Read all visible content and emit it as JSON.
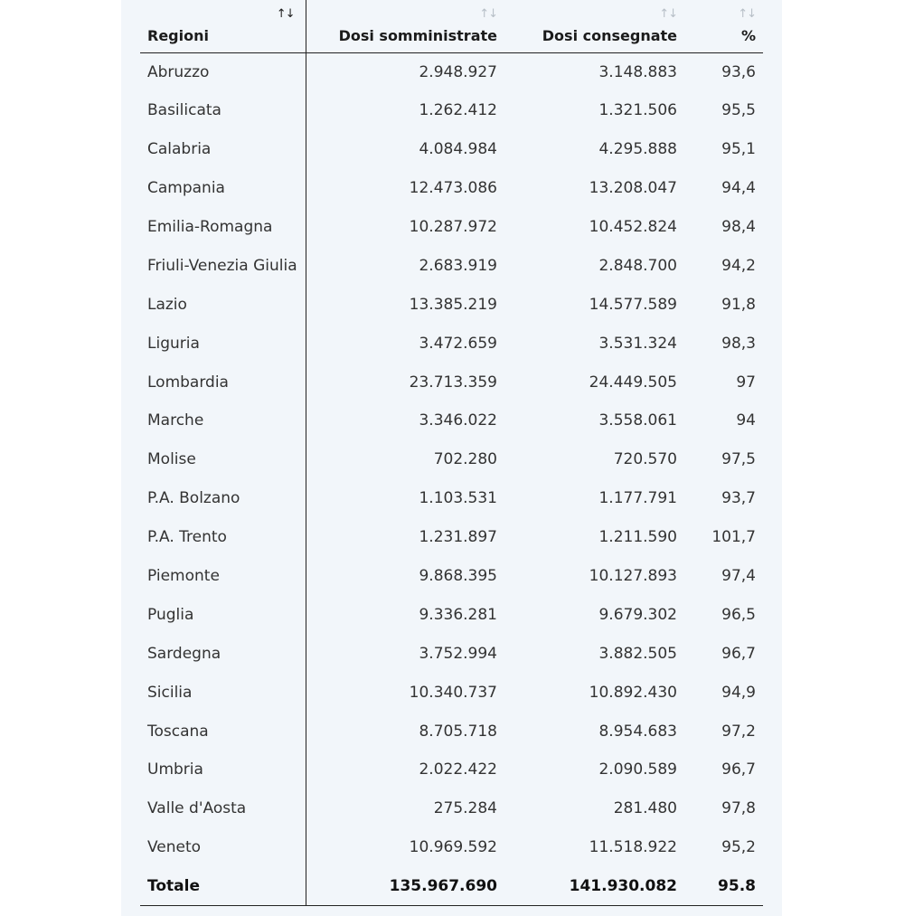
{
  "table": {
    "headers": {
      "region": "Regioni",
      "administered": "Dosi somministrate",
      "delivered": "Dosi consegnate",
      "percent": "%"
    },
    "sort_icon": {
      "up": "↑",
      "down": "↓"
    },
    "rows": [
      {
        "region": "Abruzzo",
        "administered": "2.948.927",
        "delivered": "3.148.883",
        "percent": "93,6"
      },
      {
        "region": "Basilicata",
        "administered": "1.262.412",
        "delivered": "1.321.506",
        "percent": "95,5"
      },
      {
        "region": "Calabria",
        "administered": "4.084.984",
        "delivered": "4.295.888",
        "percent": "95,1"
      },
      {
        "region": "Campania",
        "administered": "12.473.086",
        "delivered": "13.208.047",
        "percent": "94,4"
      },
      {
        "region": "Emilia-Romagna",
        "administered": "10.287.972",
        "delivered": "10.452.824",
        "percent": "98,4"
      },
      {
        "region": "Friuli-Venezia Giulia",
        "administered": "2.683.919",
        "delivered": "2.848.700",
        "percent": "94,2"
      },
      {
        "region": "Lazio",
        "administered": "13.385.219",
        "delivered": "14.577.589",
        "percent": "91,8"
      },
      {
        "region": "Liguria",
        "administered": "3.472.659",
        "delivered": "3.531.324",
        "percent": "98,3"
      },
      {
        "region": "Lombardia",
        "administered": "23.713.359",
        "delivered": "24.449.505",
        "percent": "97"
      },
      {
        "region": "Marche",
        "administered": "3.346.022",
        "delivered": "3.558.061",
        "percent": "94"
      },
      {
        "region": "Molise",
        "administered": "702.280",
        "delivered": "720.570",
        "percent": "97,5"
      },
      {
        "region": "P.A. Bolzano",
        "administered": "1.103.531",
        "delivered": "1.177.791",
        "percent": "93,7"
      },
      {
        "region": "P.A. Trento",
        "administered": "1.231.897",
        "delivered": "1.211.590",
        "percent": "101,7"
      },
      {
        "region": "Piemonte",
        "administered": "9.868.395",
        "delivered": "10.127.893",
        "percent": "97,4"
      },
      {
        "region": "Puglia",
        "administered": "9.336.281",
        "delivered": "9.679.302",
        "percent": "96,5"
      },
      {
        "region": "Sardegna",
        "administered": "3.752.994",
        "delivered": "3.882.505",
        "percent": "96,7"
      },
      {
        "region": "Sicilia",
        "administered": "10.340.737",
        "delivered": "10.892.430",
        "percent": "94,9"
      },
      {
        "region": "Toscana",
        "administered": "8.705.718",
        "delivered": "8.954.683",
        "percent": "97,2"
      },
      {
        "region": "Umbria",
        "administered": "2.022.422",
        "delivered": "2.090.589",
        "percent": "96,7"
      },
      {
        "region": "Valle d'Aosta",
        "administered": "275.284",
        "delivered": "281.480",
        "percent": "97,8"
      },
      {
        "region": "Veneto",
        "administered": "10.969.592",
        "delivered": "11.518.922",
        "percent": "95,2"
      }
    ],
    "total": {
      "region": "Totale",
      "administered": "135.967.690",
      "delivered": "141.930.082",
      "percent": "95.8"
    }
  },
  "colors": {
    "panel_bg": "#f2f6fa",
    "text": "#333333",
    "sort_inactive": "#b7bfc7",
    "rule": "#222222"
  }
}
